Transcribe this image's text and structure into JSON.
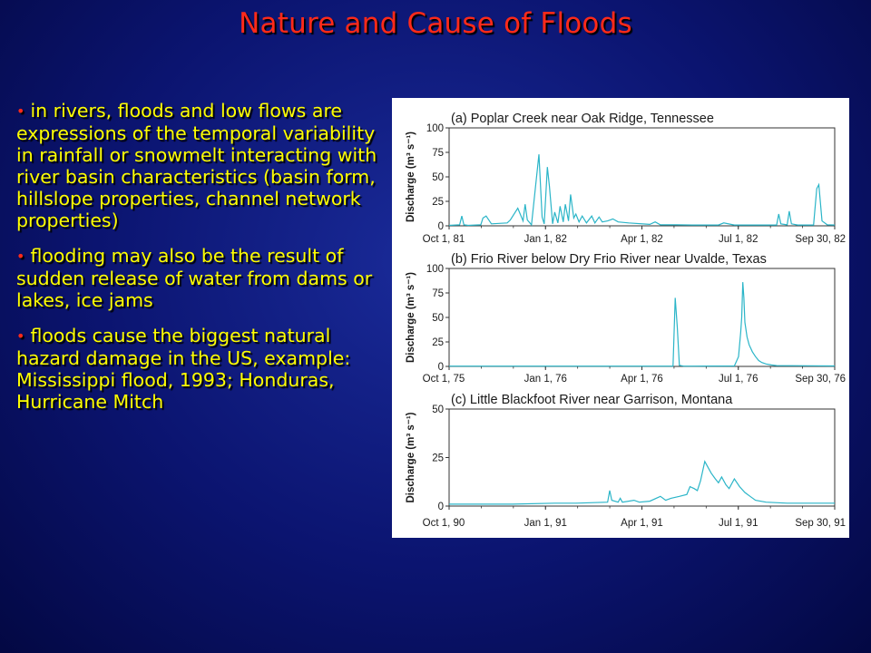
{
  "title": "Nature and Cause of Floods",
  "bullets": [
    "in rivers, floods and low flows are expressions of the temporal variability in rainfall or snowmelt interacting with river basin characteristics (basin form, hillslope properties, channel network properties)",
    "flooding may also be the result of sudden release of water from dams or lakes, ice jams",
    "floods cause the biggest natural hazard damage in the US, example: Mississippi flood, 1993; Honduras, Hurricane Mitch"
  ],
  "colors": {
    "title": "#ff2a1a",
    "text": "#ffff00",
    "line": "#2bb5c8",
    "background": "#0b1470"
  },
  "chart_data": [
    {
      "type": "line",
      "title": "(a) Poplar Creek near Oak Ridge, Tennessee",
      "ylabel": "Discharge (m³ s⁻¹)",
      "ylim": [
        0,
        100
      ],
      "yticks": [
        0,
        25,
        50,
        75,
        100
      ],
      "xticklabels": [
        "Oct 1, 81",
        "Jan 1, 82",
        "Apr 1, 82",
        "Jul 1, 82",
        "Sep 30, 82"
      ],
      "xlim": [
        0,
        365
      ],
      "x": [
        0,
        10,
        12,
        14,
        18,
        30,
        32,
        35,
        40,
        55,
        58,
        65,
        70,
        72,
        74,
        78,
        85,
        88,
        90,
        93,
        95,
        98,
        100,
        103,
        105,
        108,
        110,
        113,
        115,
        118,
        120,
        123,
        126,
        130,
        135,
        138,
        142,
        145,
        150,
        155,
        160,
        170,
        190,
        195,
        200,
        215,
        230,
        255,
        260,
        270,
        310,
        312,
        314,
        320,
        322,
        324,
        330,
        345,
        348,
        350,
        353,
        358,
        365
      ],
      "y": [
        0.5,
        1,
        10,
        1,
        0.5,
        1,
        8,
        10,
        2,
        3,
        6,
        18,
        5,
        22,
        6,
        1,
        73,
        9,
        2,
        60,
        40,
        2,
        14,
        3,
        20,
        4,
        22,
        5,
        32,
        8,
        12,
        4,
        10,
        3,
        10,
        3,
        9,
        4,
        5,
        7,
        4,
        3,
        1.5,
        4,
        1,
        1,
        0.8,
        0.8,
        3,
        0.8,
        0.8,
        12,
        2,
        1,
        15,
        2,
        0.8,
        0.8,
        38,
        42,
        5,
        1,
        0.8
      ]
    },
    {
      "type": "line",
      "title": "(b) Frio River below Dry Frio River near Uvalde, Texas",
      "ylabel": "Discharge (m³ s⁻¹)",
      "ylim": [
        0,
        100
      ],
      "yticks": [
        0,
        25,
        50,
        75,
        100
      ],
      "xticklabels": [
        "Oct 1, 75",
        "Jan 1, 76",
        "Apr 1, 76",
        "Jul 1, 76",
        "Sep 30, 76"
      ],
      "xlim": [
        0,
        365
      ],
      "x": [
        0,
        212,
        214,
        216,
        218,
        222,
        230,
        270,
        274,
        276,
        277,
        278,
        279,
        280,
        282,
        284,
        287,
        290,
        293,
        296,
        300,
        305,
        310,
        365
      ],
      "y": [
        0.3,
        0.3,
        70,
        40,
        1,
        0.3,
        0.3,
        0.5,
        10,
        35,
        50,
        86,
        70,
        45,
        30,
        22,
        15,
        10,
        6,
        4,
        2.5,
        1.5,
        0.8,
        0.5
      ]
    },
    {
      "type": "line",
      "title": "(c) Little Blackfoot River near Garrison, Montana",
      "ylabel": "Discharge (m³ s⁻¹)",
      "ylim": [
        0,
        50
      ],
      "yticks": [
        0,
        25,
        50
      ],
      "xticklabels": [
        "Oct 1, 90",
        "Jan 1, 91",
        "Apr 1, 91",
        "Jul 1, 91",
        "Sep 30, 91"
      ],
      "xlim": [
        0,
        365
      ],
      "x": [
        0,
        60,
        100,
        120,
        150,
        152,
        154,
        160,
        162,
        164,
        175,
        180,
        190,
        200,
        205,
        210,
        218,
        225,
        228,
        232,
        235,
        238,
        242,
        245,
        248,
        252,
        255,
        258,
        262,
        265,
        270,
        275,
        280,
        285,
        290,
        300,
        320,
        340,
        365
      ],
      "y": [
        1,
        1,
        1.5,
        1.5,
        2,
        8,
        3,
        2,
        4,
        2,
        3,
        2,
        2.5,
        5,
        3,
        4,
        5,
        6,
        10,
        9,
        8,
        13,
        23,
        20,
        17,
        14,
        12,
        15,
        11,
        9,
        14,
        10,
        7,
        5,
        3,
        2,
        1.5,
        1.5,
        1.5
      ]
    }
  ]
}
